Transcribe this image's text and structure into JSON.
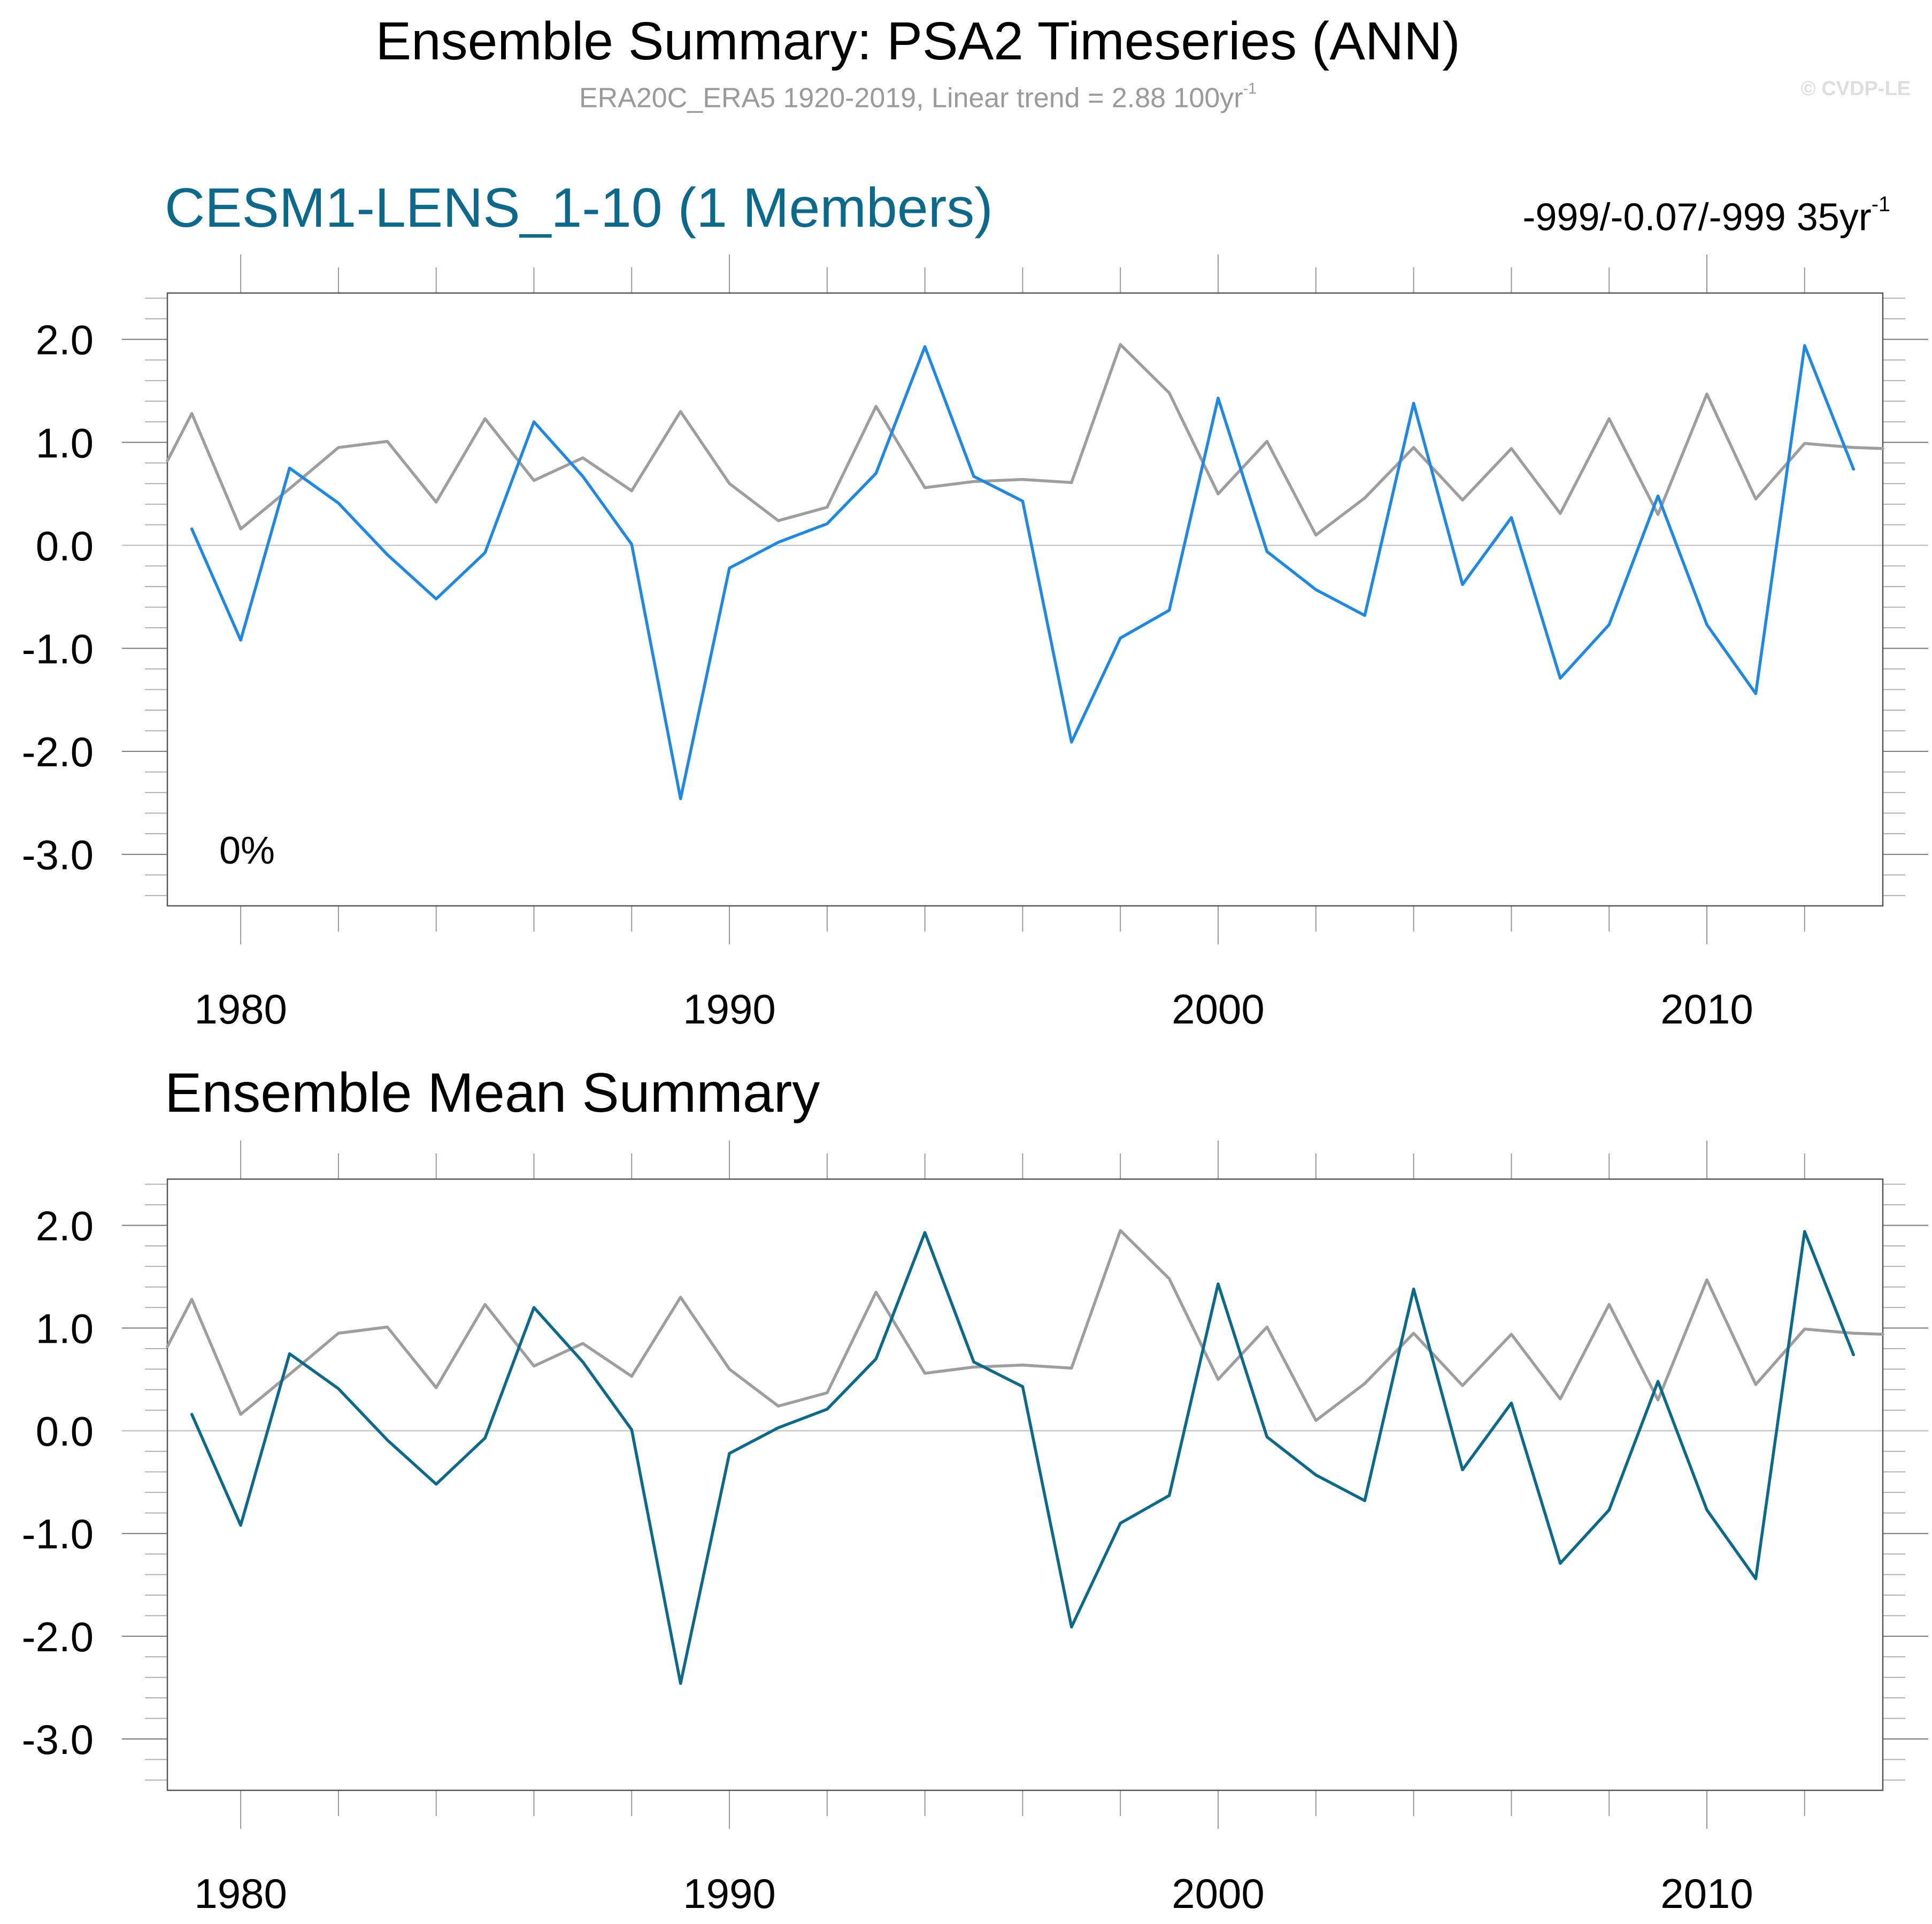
{
  "header": {
    "title": "Ensemble Summary: PSA2 Timeseries (ANN)",
    "subtitle": "ERA20C_ERA5 1920-2019, Linear trend = 2.88 100yr",
    "subtitle_sup": "-1",
    "watermark": "© CVDP-LE"
  },
  "panel1": {
    "title": "CESM1-LENS_1-10 (1 Members)",
    "trend_text": "-999/-0.07/-999 35yr",
    "trend_sup": "-1",
    "percent_label": "0%"
  },
  "panel2": {
    "title": "Ensemble Mean Summary"
  },
  "colors": {
    "model_top": "#1e88e5",
    "model_bottom": "#0b6a8c",
    "observations": "#9e9e9e",
    "zero_line": "#c8c8c8",
    "axes": "#555555"
  },
  "chart_data": [
    {
      "type": "line",
      "title": "CESM1-LENS_1-10 (1 Members)",
      "xlabel": "",
      "ylabel": "",
      "xlim": [
        1978.5,
        2013.6
      ],
      "ylim": [
        -3.5,
        2.45
      ],
      "x_ticks": [
        1980,
        1990,
        2000,
        2010
      ],
      "y_ticks": [
        2.0,
        1.0,
        0.0,
        -1.0,
        -2.0,
        -3.0
      ],
      "y_tick_labels": [
        "2.0",
        "1.0",
        "0.0",
        "-1.0",
        "-2.0",
        "-3.0"
      ],
      "reference_line": 0.0,
      "grid": false,
      "series": [
        {
          "name": "CESM1-LENS member",
          "color_key": "model_top",
          "x": [
            1979,
            1980,
            1981,
            1982,
            1983,
            1984,
            1985,
            1986,
            1987,
            1988,
            1989,
            1990,
            1991,
            1992,
            1993,
            1994,
            1995,
            1996,
            1997,
            1998,
            1999,
            2000,
            2001,
            2002,
            2003,
            2004,
            2005,
            2006,
            2007,
            2008,
            2009,
            2010,
            2011,
            2012,
            2013
          ],
          "values": [
            0.16,
            -0.92,
            0.75,
            0.41,
            -0.09,
            -0.52,
            -0.07,
            1.2,
            0.67,
            0.01,
            -2.46,
            -0.22,
            0.03,
            0.21,
            0.7,
            1.93,
            0.67,
            0.43,
            -1.91,
            -0.9,
            -0.63,
            1.43,
            -0.06,
            -0.43,
            -0.68,
            1.38,
            -0.38,
            0.27,
            -1.29,
            -0.77,
            0.48,
            -0.77,
            -1.44,
            1.94,
            0.74
          ]
        },
        {
          "name": "ERA20C_ERA5 observations",
          "color_key": "observations",
          "x": [
            1978.5,
            1979,
            1980,
            1981,
            1982,
            1983,
            1984,
            1985,
            1986,
            1987,
            1988,
            1989,
            1990,
            1991,
            1992,
            1993,
            1994,
            1995,
            1996,
            1997,
            1998,
            1999,
            2000,
            2001,
            2002,
            2003,
            2004,
            2005,
            2006,
            2007,
            2008,
            2009,
            2010,
            2011,
            2012,
            2013,
            2013.6
          ],
          "values": [
            0.82,
            1.28,
            0.16,
            0.55,
            0.95,
            1.01,
            0.42,
            1.23,
            0.63,
            0.85,
            0.53,
            1.3,
            0.6,
            0.24,
            0.37,
            1.35,
            0.56,
            0.62,
            0.64,
            0.61,
            1.95,
            1.48,
            0.5,
            1.01,
            0.1,
            0.46,
            0.95,
            0.44,
            0.94,
            0.31,
            1.23,
            0.3,
            1.47,
            0.45,
            0.99,
            0.95,
            0.94
          ]
        }
      ]
    },
    {
      "type": "line",
      "title": "Ensemble Mean Summary",
      "xlabel": "",
      "ylabel": "",
      "xlim": [
        1978.5,
        2013.6
      ],
      "ylim": [
        -3.5,
        2.45
      ],
      "x_ticks": [
        1980,
        1990,
        2000,
        2010
      ],
      "y_ticks": [
        2.0,
        1.0,
        0.0,
        -1.0,
        -2.0,
        -3.0
      ],
      "y_tick_labels": [
        "2.0",
        "1.0",
        "0.0",
        "-1.0",
        "-2.0",
        "-3.0"
      ],
      "reference_line": 0.0,
      "grid": false,
      "series": [
        {
          "name": "Ensemble mean",
          "color_key": "model_bottom",
          "x": [
            1979,
            1980,
            1981,
            1982,
            1983,
            1984,
            1985,
            1986,
            1987,
            1988,
            1989,
            1990,
            1991,
            1992,
            1993,
            1994,
            1995,
            1996,
            1997,
            1998,
            1999,
            2000,
            2001,
            2002,
            2003,
            2004,
            2005,
            2006,
            2007,
            2008,
            2009,
            2010,
            2011,
            2012,
            2013
          ],
          "values": [
            0.16,
            -0.92,
            0.75,
            0.41,
            -0.09,
            -0.52,
            -0.07,
            1.2,
            0.67,
            0.01,
            -2.46,
            -0.22,
            0.03,
            0.21,
            0.7,
            1.93,
            0.67,
            0.43,
            -1.91,
            -0.9,
            -0.63,
            1.43,
            -0.06,
            -0.43,
            -0.68,
            1.38,
            -0.38,
            0.27,
            -1.29,
            -0.77,
            0.48,
            -0.77,
            -1.44,
            1.94,
            0.74
          ]
        },
        {
          "name": "ERA20C_ERA5 observations",
          "color_key": "observations",
          "x": [
            1978.5,
            1979,
            1980,
            1981,
            1982,
            1983,
            1984,
            1985,
            1986,
            1987,
            1988,
            1989,
            1990,
            1991,
            1992,
            1993,
            1994,
            1995,
            1996,
            1997,
            1998,
            1999,
            2000,
            2001,
            2002,
            2003,
            2004,
            2005,
            2006,
            2007,
            2008,
            2009,
            2010,
            2011,
            2012,
            2013,
            2013.6
          ],
          "values": [
            0.82,
            1.28,
            0.16,
            0.55,
            0.95,
            1.01,
            0.42,
            1.23,
            0.63,
            0.85,
            0.53,
            1.3,
            0.6,
            0.24,
            0.37,
            1.35,
            0.56,
            0.62,
            0.64,
            0.61,
            1.95,
            1.48,
            0.5,
            1.01,
            0.1,
            0.46,
            0.95,
            0.44,
            0.94,
            0.31,
            1.23,
            0.3,
            1.47,
            0.45,
            0.99,
            0.95,
            0.94
          ]
        }
      ]
    }
  ]
}
